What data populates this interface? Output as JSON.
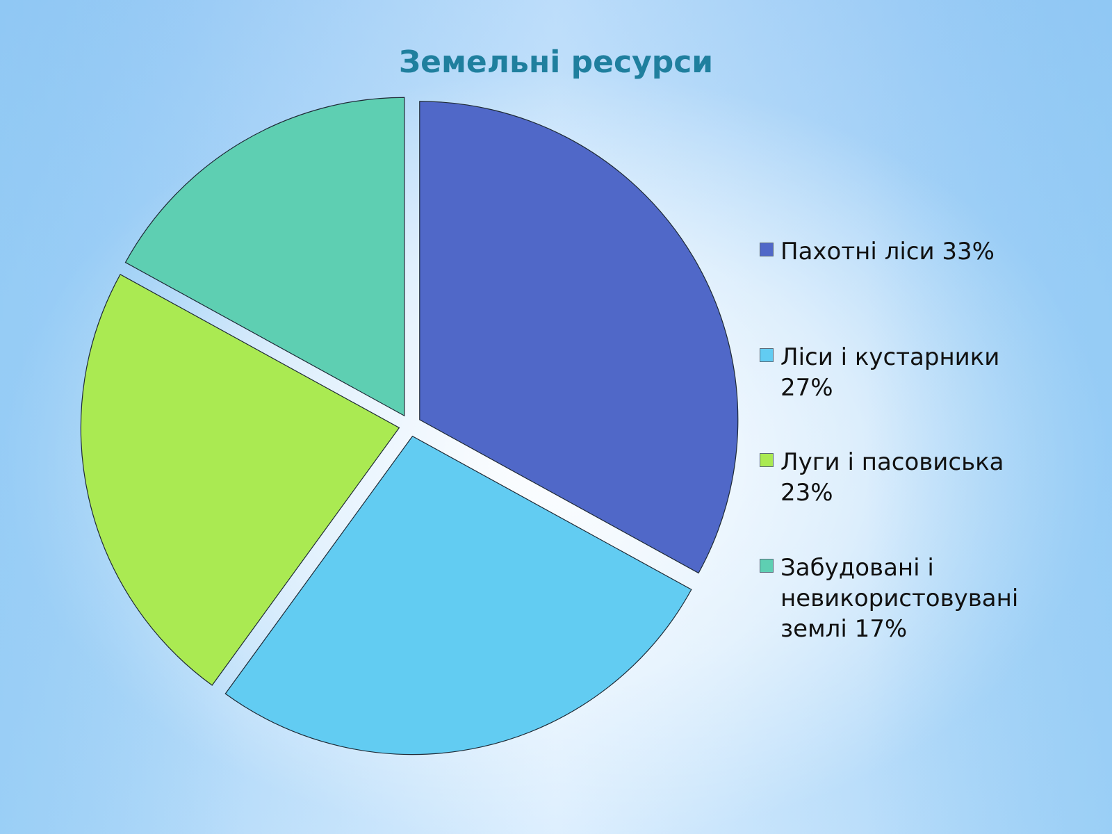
{
  "chart_data": {
    "type": "pie",
    "title": "Земельні ресурси",
    "categories": [
      "Пахотні ліси 33%",
      "Ліси і кустарники 27%",
      "Луги і пасовиська 23%",
      "Забудовані і невикористовувані землі 17%"
    ],
    "values": [
      33,
      27,
      23,
      17
    ],
    "colors": [
      "#5068c8",
      "#62ccf2",
      "#aaea52",
      "#5ecfb2"
    ],
    "legend_position": "right",
    "exploded": true
  }
}
